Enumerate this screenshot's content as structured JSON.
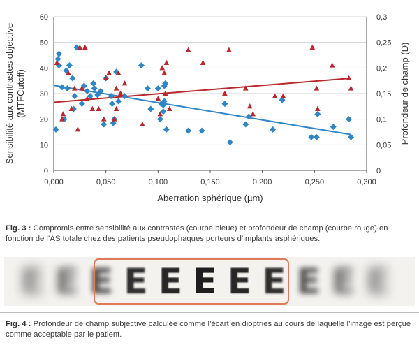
{
  "chart_data": {
    "type": "scatter",
    "xlabel": "Aberration sphérique  (µm)",
    "ylabel_left": "Sensibilité aux contrastes objective (MTFCutoff)",
    "ylabel_right": "Profondeur de champ (D)",
    "xlim": [
      0,
      0.3
    ],
    "ylim_left": [
      0,
      60
    ],
    "ylim_right": [
      0,
      0.3
    ],
    "x_ticks": [
      "0,000",
      "0,050",
      "0,100",
      "0,150",
      "0,200",
      "0,250",
      "0,300"
    ],
    "y_ticks_left": [
      "0",
      "10",
      "20",
      "30",
      "40",
      "50",
      "60"
    ],
    "y_ticks_right": [
      "0",
      "0,05",
      "0,1",
      "0,15",
      "0,2",
      "0,25",
      "0,3"
    ],
    "grid": true,
    "colors": {
      "blue": "#2f86c7",
      "red": "#b8282e",
      "grid": "#d3d3d3"
    },
    "series": [
      {
        "axis": "left",
        "marker": "diamond",
        "color": "#2f86c7",
        "points": [
          [
            0.002,
            16
          ],
          [
            0.004,
            43.5
          ],
          [
            0.005,
            45.5
          ],
          [
            0.005,
            41
          ],
          [
            0.008,
            32.5
          ],
          [
            0.01,
            20
          ],
          [
            0.012,
            39
          ],
          [
            0.013,
            32
          ],
          [
            0.015,
            41
          ],
          [
            0.018,
            36
          ],
          [
            0.019,
            24
          ],
          [
            0.02,
            29
          ],
          [
            0.022,
            48
          ],
          [
            0.027,
            26
          ],
          [
            0.029,
            33
          ],
          [
            0.032,
            31
          ],
          [
            0.035,
            29
          ],
          [
            0.038,
            34
          ],
          [
            0.039,
            32
          ],
          [
            0.042,
            29.5
          ],
          [
            0.045,
            31
          ],
          [
            0.048,
            18
          ],
          [
            0.05,
            36
          ],
          [
            0.055,
            29
          ],
          [
            0.056,
            26
          ],
          [
            0.057,
            18.5
          ],
          [
            0.058,
            20
          ],
          [
            0.06,
            38.5
          ],
          [
            0.062,
            27
          ],
          [
            0.068,
            29
          ],
          [
            0.084,
            41
          ],
          [
            0.09,
            32
          ],
          [
            0.093,
            24
          ],
          [
            0.1,
            32
          ],
          [
            0.102,
            20
          ],
          [
            0.103,
            26
          ],
          [
            0.105,
            23
          ],
          [
            0.105,
            25.5
          ],
          [
            0.106,
            27
          ],
          [
            0.106,
            33
          ],
          [
            0.107,
            34
          ],
          [
            0.108,
            16
          ],
          [
            0.129,
            15.5
          ],
          [
            0.142,
            15.5
          ],
          [
            0.164,
            26
          ],
          [
            0.169,
            11
          ],
          [
            0.184,
            18
          ],
          [
            0.187,
            21
          ],
          [
            0.21,
            16
          ],
          [
            0.219,
            27.5
          ],
          [
            0.247,
            13
          ],
          [
            0.252,
            13
          ],
          [
            0.253,
            22
          ],
          [
            0.268,
            17
          ],
          [
            0.283,
            20
          ],
          [
            0.285,
            13
          ]
        ],
        "trend": [
          [
            0.0,
            33.2
          ],
          [
            0.285,
            14
          ]
        ]
      },
      {
        "axis": "right",
        "marker": "triangle",
        "color": "#b8282e",
        "points": [
          [
            0.003,
            0.21
          ],
          [
            0.008,
            0.1
          ],
          [
            0.009,
            0.11
          ],
          [
            0.014,
            0.19
          ],
          [
            0.017,
            0.12
          ],
          [
            0.02,
            0.16
          ],
          [
            0.023,
            0.08
          ],
          [
            0.025,
            0.24
          ],
          [
            0.027,
            0.16
          ],
          [
            0.03,
            0.24
          ],
          [
            0.032,
            0.14
          ],
          [
            0.037,
            0.12
          ],
          [
            0.043,
            0.12
          ],
          [
            0.048,
            0.1
          ],
          [
            0.05,
            0.18
          ],
          [
            0.053,
            0.19
          ],
          [
            0.058,
            0.1
          ],
          [
            0.06,
            0.12
          ],
          [
            0.06,
            0.16
          ],
          [
            0.062,
            0.19
          ],
          [
            0.064,
            0.15
          ],
          [
            0.068,
            0.17
          ],
          [
            0.085,
            0.09
          ],
          [
            0.1,
            0.14
          ],
          [
            0.102,
            0.11
          ],
          [
            0.104,
            0.2
          ],
          [
            0.106,
            0.19
          ],
          [
            0.107,
            0.15
          ],
          [
            0.108,
            0.21
          ],
          [
            0.111,
            0.12
          ],
          [
            0.129,
            0.235
          ],
          [
            0.143,
            0.21
          ],
          [
            0.164,
            0.15
          ],
          [
            0.168,
            0.235
          ],
          [
            0.184,
            0.16
          ],
          [
            0.188,
            0.125
          ],
          [
            0.191,
            0.11
          ],
          [
            0.212,
            0.145
          ],
          [
            0.22,
            0.145
          ],
          [
            0.248,
            0.24
          ],
          [
            0.252,
            0.16
          ],
          [
            0.253,
            0.12
          ],
          [
            0.267,
            0.205
          ],
          [
            0.283,
            0.18
          ],
          [
            0.285,
            0.16
          ]
        ],
        "trend": [
          [
            0.0,
            0.133
          ],
          [
            0.285,
            0.18
          ]
        ]
      }
    ]
  },
  "fig3_caption": {
    "label": "Fig. 3 :",
    "text": "Compromis entre sensibilité aux contrastes (courbe bleue) et profondeur de champ (courbe rouge) en fonction de l’AS totale chez des patients pseudophaques porteurs d’implants asphériques."
  },
  "fig4": {
    "letters": [
      "E",
      "E",
      "E",
      "E",
      "E",
      "E",
      "E",
      "E",
      "E",
      "E",
      "E"
    ],
    "sharpness": [
      0.15,
      0.35,
      0.6,
      0.85,
      0.92,
      1.0,
      0.92,
      0.85,
      0.55,
      0.35,
      0.15
    ],
    "frame_color": "#e07a5a"
  },
  "fig4_caption": {
    "label": "Fig. 4 :",
    "text": "Profondeur de champ subjective calculée comme l’écart en dioptries au cours de laquelle l’image est perçue comme acceptable par le patient."
  }
}
